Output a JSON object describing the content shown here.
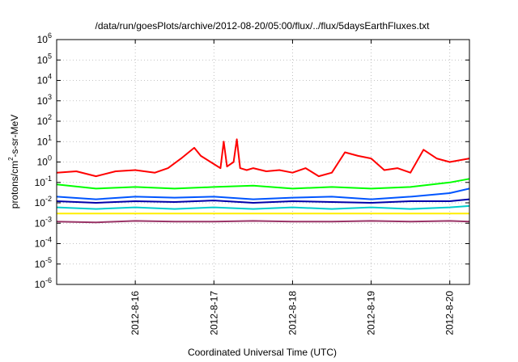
{
  "chart_data": {
    "type": "line",
    "title": "/data/run/goesPlots/archive/2012-08-20/05:00/flux/../flux/5daysEarthFluxes.txt",
    "xlabel": "Coordinated Universal Time (UTC)",
    "ylabel_parts": {
      "base": "protons/cm",
      "sup": "2",
      "rest": "-s-sr-MeV"
    },
    "x_range": [
      "2012-08-15T00:00",
      "2012-08-20T06:00"
    ],
    "y_scale": "log",
    "y_range": [
      1e-06,
      1000000.0
    ],
    "grid": true,
    "x_ticks": [
      {
        "label": "2012-8-16",
        "value": "2012-08-16T00:00"
      },
      {
        "label": "2012-8-17",
        "value": "2012-08-17T00:00"
      },
      {
        "label": "2012-8-18",
        "value": "2012-08-18T00:00"
      },
      {
        "label": "2012-8-19",
        "value": "2012-08-19T00:00"
      },
      {
        "label": "2012-8-20",
        "value": "2012-08-20T00:00"
      }
    ],
    "y_ticks": [
      {
        "base": "10",
        "exp": "-6",
        "value": 1e-06
      },
      {
        "base": "10",
        "exp": "-5",
        "value": 1e-05
      },
      {
        "base": "10",
        "exp": "-4",
        "value": 0.0001
      },
      {
        "base": "10",
        "exp": "-3",
        "value": 0.001
      },
      {
        "base": "10",
        "exp": "-2",
        "value": 0.01
      },
      {
        "base": "10",
        "exp": "-1",
        "value": 0.1
      },
      {
        "base": "10",
        "exp": "0",
        "value": 1
      },
      {
        "base": "10",
        "exp": "1",
        "value": 10
      },
      {
        "base": "10",
        "exp": "2",
        "value": 100
      },
      {
        "base": "10",
        "exp": "3",
        "value": 1000
      },
      {
        "base": "10",
        "exp": "4",
        "value": 10000
      },
      {
        "base": "10",
        "exp": "5",
        "value": 100000
      },
      {
        "base": "10",
        "exp": "6",
        "value": 1000000
      }
    ],
    "series": [
      {
        "color": "#ff0000",
        "x": [
          "2012-08-15T00:00",
          "2012-08-15T06:00",
          "2012-08-15T12:00",
          "2012-08-15T18:00",
          "2012-08-16T00:00",
          "2012-08-16T06:00",
          "2012-08-16T10:00",
          "2012-08-16T14:00",
          "2012-08-16T18:00",
          "2012-08-16T20:00",
          "2012-08-16T23:00",
          "2012-08-17T02:00",
          "2012-08-17T03:00",
          "2012-08-17T04:00",
          "2012-08-17T06:00",
          "2012-08-17T07:00",
          "2012-08-17T08:00",
          "2012-08-17T10:00",
          "2012-08-17T12:00",
          "2012-08-17T16:00",
          "2012-08-17T20:00",
          "2012-08-18T00:00",
          "2012-08-18T04:00",
          "2012-08-18T08:00",
          "2012-08-18T12:00",
          "2012-08-18T16:00",
          "2012-08-18T20:00",
          "2012-08-19T00:00",
          "2012-08-19T04:00",
          "2012-08-19T08:00",
          "2012-08-19T12:00",
          "2012-08-19T16:00",
          "2012-08-19T20:00",
          "2012-08-20T00:00",
          "2012-08-20T06:00"
        ],
        "y": [
          0.3,
          0.35,
          0.2,
          0.35,
          0.4,
          0.3,
          0.5,
          1.5,
          5.0,
          2.0,
          1.0,
          0.5,
          10.0,
          0.6,
          1.0,
          13.0,
          0.5,
          0.4,
          0.5,
          0.35,
          0.4,
          0.3,
          0.5,
          0.2,
          0.3,
          3.0,
          2.0,
          1.5,
          0.4,
          0.5,
          0.3,
          4.0,
          1.5,
          1.0,
          1.5
        ]
      },
      {
        "color": "#00ff00",
        "x": [
          "2012-08-15T00:00",
          "2012-08-15T12:00",
          "2012-08-16T00:00",
          "2012-08-16T12:00",
          "2012-08-17T00:00",
          "2012-08-17T12:00",
          "2012-08-18T00:00",
          "2012-08-18T12:00",
          "2012-08-19T00:00",
          "2012-08-19T12:00",
          "2012-08-20T00:00",
          "2012-08-20T06:00"
        ],
        "y": [
          0.08,
          0.05,
          0.06,
          0.05,
          0.06,
          0.07,
          0.05,
          0.06,
          0.05,
          0.06,
          0.1,
          0.15
        ]
      },
      {
        "color": "#0055ff",
        "x": [
          "2012-08-15T00:00",
          "2012-08-15T12:00",
          "2012-08-16T00:00",
          "2012-08-16T12:00",
          "2012-08-17T00:00",
          "2012-08-17T12:00",
          "2012-08-18T00:00",
          "2012-08-18T12:00",
          "2012-08-19T00:00",
          "2012-08-19T12:00",
          "2012-08-20T00:00",
          "2012-08-20T06:00"
        ],
        "y": [
          0.02,
          0.015,
          0.02,
          0.018,
          0.02,
          0.015,
          0.018,
          0.02,
          0.015,
          0.02,
          0.03,
          0.05
        ]
      },
      {
        "color": "#0000aa",
        "x": [
          "2012-08-15T00:00",
          "2012-08-15T12:00",
          "2012-08-16T00:00",
          "2012-08-16T12:00",
          "2012-08-17T00:00",
          "2012-08-17T12:00",
          "2012-08-18T00:00",
          "2012-08-18T12:00",
          "2012-08-19T00:00",
          "2012-08-19T12:00",
          "2012-08-20T00:00",
          "2012-08-20T06:00"
        ],
        "y": [
          0.012,
          0.01,
          0.012,
          0.011,
          0.013,
          0.01,
          0.012,
          0.011,
          0.01,
          0.012,
          0.012,
          0.015
        ]
      },
      {
        "color": "#00cccc",
        "x": [
          "2012-08-15T00:00",
          "2012-08-15T12:00",
          "2012-08-16T00:00",
          "2012-08-16T12:00",
          "2012-08-17T00:00",
          "2012-08-17T12:00",
          "2012-08-18T00:00",
          "2012-08-18T12:00",
          "2012-08-19T00:00",
          "2012-08-19T12:00",
          "2012-08-20T00:00",
          "2012-08-20T06:00"
        ],
        "y": [
          0.006,
          0.005,
          0.006,
          0.005,
          0.006,
          0.005,
          0.006,
          0.005,
          0.006,
          0.005,
          0.006,
          0.007
        ]
      },
      {
        "color": "#ffee00",
        "x": [
          "2012-08-15T00:00",
          "2012-08-15T12:00",
          "2012-08-16T00:00",
          "2012-08-16T12:00",
          "2012-08-17T00:00",
          "2012-08-17T12:00",
          "2012-08-18T00:00",
          "2012-08-18T12:00",
          "2012-08-19T00:00",
          "2012-08-19T12:00",
          "2012-08-20T00:00",
          "2012-08-20T06:00"
        ],
        "y": [
          0.003,
          0.003,
          0.003,
          0.003,
          0.003,
          0.003,
          0.003,
          0.003,
          0.003,
          0.003,
          0.003,
          0.003
        ]
      },
      {
        "color": "#993366",
        "x": [
          "2012-08-15T00:00",
          "2012-08-15T12:00",
          "2012-08-16T00:00",
          "2012-08-16T12:00",
          "2012-08-17T00:00",
          "2012-08-17T12:00",
          "2012-08-18T00:00",
          "2012-08-18T12:00",
          "2012-08-19T00:00",
          "2012-08-19T12:00",
          "2012-08-20T00:00",
          "2012-08-20T06:00"
        ],
        "y": [
          0.0012,
          0.0011,
          0.0013,
          0.0012,
          0.0012,
          0.0013,
          0.0012,
          0.0012,
          0.0013,
          0.0012,
          0.0013,
          0.0012
        ]
      }
    ]
  }
}
